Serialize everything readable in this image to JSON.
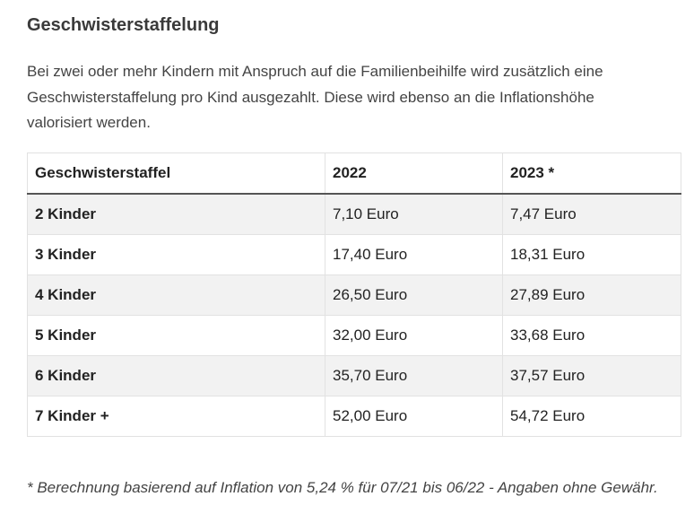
{
  "heading": "Geschwisterstaffelung",
  "intro": "Bei zwei oder mehr Kindern mit Anspruch auf die Familienbeihilfe wird zusätzlich eine Geschwisterstaffelung pro Kind ausgezahlt. Diese wird ebenso an die Inflationshöhe valorisiert werden.",
  "table": {
    "headers": [
      "Geschwisterstaffel",
      "2022",
      "2023 *"
    ],
    "rows": [
      [
        "2 Kinder",
        "7,10 Euro",
        "7,47 Euro"
      ],
      [
        "3 Kinder",
        "17,40 Euro",
        "18,31 Euro"
      ],
      [
        "4 Kinder",
        "26,50 Euro",
        "27,89 Euro"
      ],
      [
        "5 Kinder",
        "32,00 Euro",
        "33,68 Euro"
      ],
      [
        "6 Kinder",
        "35,70 Euro",
        "37,57 Euro"
      ],
      [
        "7 Kinder +",
        "52,00 Euro",
        "54,72 Euro"
      ]
    ]
  },
  "footnote": "* Berechnung basierend auf Inflation von 5,24 % für 07/21 bis 06/22 - Angaben ohne Gewähr."
}
